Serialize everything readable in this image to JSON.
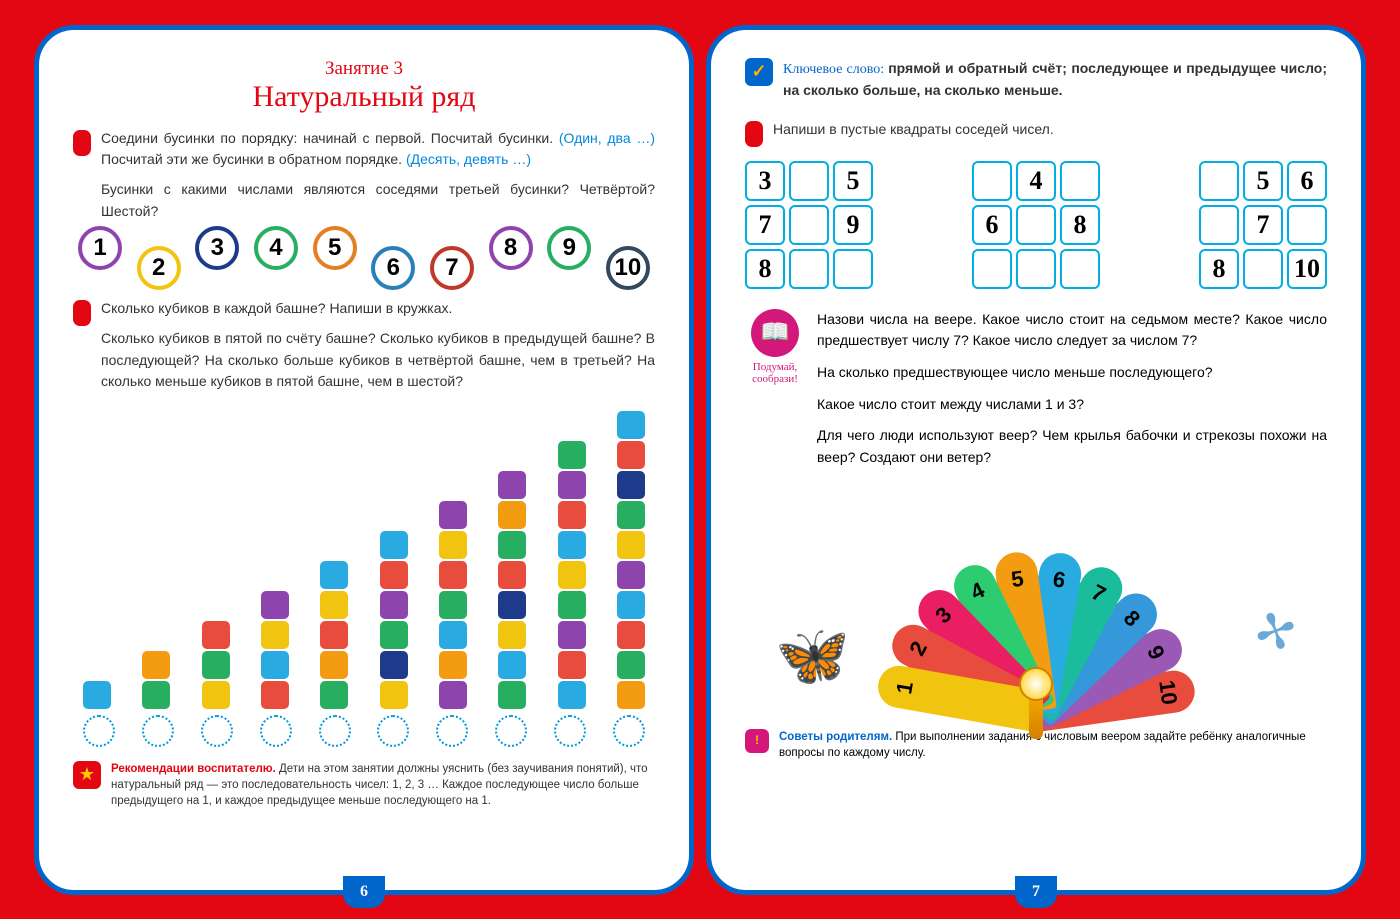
{
  "colors": {
    "bg": "#e30613",
    "border": "#0066cc",
    "red": "#e30613",
    "blue_hint": "#0088e0",
    "cell_border": "#00aee0",
    "magenta": "#d4177a"
  },
  "left": {
    "lesson_label": "Занятие 3",
    "title": "Натуральный ряд",
    "task1_a": "Соедини бусинки по порядку: начинай с первой. Посчитай бусинки. ",
    "task1_b": "(Один, два …) ",
    "task1_c": "Посчитай эти же бусинки в обратном порядке. ",
    "task1_d": "(Десять, девять …)",
    "task1_q": "Бусинки с какими числами являются соседями третьей бусинки? Четвёртой? Шестой?",
    "beads": [
      {
        "n": "1",
        "c": "#8e44ad",
        "pos": "up"
      },
      {
        "n": "2",
        "c": "#f1c40f",
        "pos": "down"
      },
      {
        "n": "3",
        "c": "#1e3a8a",
        "pos": "up"
      },
      {
        "n": "4",
        "c": "#27ae60",
        "pos": "up"
      },
      {
        "n": "5",
        "c": "#e67e22",
        "pos": "up"
      },
      {
        "n": "6",
        "c": "#2980b9",
        "pos": "down"
      },
      {
        "n": "7",
        "c": "#c0392b",
        "pos": "down"
      },
      {
        "n": "8",
        "c": "#8e44ad",
        "pos": "up"
      },
      {
        "n": "9",
        "c": "#27ae60",
        "pos": "up"
      },
      {
        "n": "10",
        "c": "#34495e",
        "pos": "down"
      }
    ],
    "task2_a": "Сколько кубиков в каждой башне? Напиши в кружках.",
    "task2_b": "Сколько кубиков в пятой по счёту башне? Сколько кубиков в предыдущей башне? В последующей? На сколько больше кубиков в четвёртой башне, чем в третьей? На сколько меньше кубиков в пятой башне, чем в шестой?",
    "cube_palette": [
      "#29abe2",
      "#27ae60",
      "#f39c12",
      "#f1c40f",
      "#e74c3c",
      "#8e44ad",
      "#1e3a8a"
    ],
    "towers": [
      [
        "#29abe2"
      ],
      [
        "#27ae60",
        "#f39c12"
      ],
      [
        "#f1c40f",
        "#27ae60",
        "#e74c3c"
      ],
      [
        "#e74c3c",
        "#29abe2",
        "#f1c40f",
        "#8e44ad"
      ],
      [
        "#27ae60",
        "#f39c12",
        "#e74c3c",
        "#f1c40f",
        "#29abe2"
      ],
      [
        "#f1c40f",
        "#1e3a8a",
        "#27ae60",
        "#8e44ad",
        "#e74c3c",
        "#29abe2"
      ],
      [
        "#8e44ad",
        "#f39c12",
        "#29abe2",
        "#27ae60",
        "#e74c3c",
        "#f1c40f",
        "#8e44ad"
      ],
      [
        "#27ae60",
        "#29abe2",
        "#f1c40f",
        "#1e3a8a",
        "#e74c3c",
        "#27ae60",
        "#f39c12",
        "#8e44ad"
      ],
      [
        "#29abe2",
        "#e74c3c",
        "#8e44ad",
        "#27ae60",
        "#f1c40f",
        "#29abe2",
        "#e74c3c",
        "#8e44ad",
        "#27ae60"
      ],
      [
        "#f39c12",
        "#27ae60",
        "#e74c3c",
        "#29abe2",
        "#8e44ad",
        "#f1c40f",
        "#27ae60",
        "#1e3a8a",
        "#e74c3c",
        "#29abe2"
      ]
    ],
    "reco_title": "Рекомендации воспитателю. ",
    "reco_text": "Дети на этом занятии должны уяснить (без заучивания понятий), что натуральный ряд — это последовательность чисел: 1, 2, 3 … Каждое последующее число больше предыдущего на 1, и каждое предыдущее меньше последующего на 1.",
    "page_num": "6"
  },
  "right": {
    "key_label": "Ключевое слово: ",
    "key_text": "прямой и обратный счёт; последующее и предыдущее число; на сколько больше, на сколько меньше.",
    "task1": "Напиши в пустые квадраты соседей чисел.",
    "grids": [
      [
        "3",
        "",
        "5",
        "7",
        "",
        "9",
        "8",
        "",
        ""
      ],
      [
        "",
        "4",
        "",
        "6",
        "",
        "8",
        "",
        "",
        ""
      ],
      [
        "",
        "5",
        "6",
        "",
        "7",
        "",
        "8",
        "",
        "10"
      ]
    ],
    "think_label": "Подумай, сообрази!",
    "think_p1": "Назови числа на веере. Какое число стоит на седьмом месте? Какое число предшествует числу 7? Какое число следует за числом 7?",
    "think_p2": "На сколько предшествующее число меньше последующего?",
    "think_p3": "Какое число стоит между числами 1 и 3?",
    "think_p4": "Для чего люди используют веер? Чем крылья бабочки и стрекозы похожи на веер? Создают они ветер?",
    "fan_blades": [
      {
        "n": "1",
        "c": "#f1c40f",
        "ang": -80
      },
      {
        "n": "2",
        "c": "#e74c3c",
        "ang": -62
      },
      {
        "n": "3",
        "c": "#e91e63",
        "ang": -44
      },
      {
        "n": "4",
        "c": "#2ecc71",
        "ang": -26
      },
      {
        "n": "5",
        "c": "#f39c12",
        "ang": -8
      },
      {
        "n": "6",
        "c": "#29abe2",
        "ang": 10
      },
      {
        "n": "7",
        "c": "#1abc9c",
        "ang": 28
      },
      {
        "n": "8",
        "c": "#3498db",
        "ang": 46
      },
      {
        "n": "9",
        "c": "#9b59b6",
        "ang": 64
      },
      {
        "n": "10",
        "c": "#e74c3c",
        "ang": 82
      }
    ],
    "advice_title": "Советы родителям. ",
    "advice_text": "При выполнении задания с числовым веером задайте ребёнку аналогичные вопросы по каждому числу.",
    "page_num": "7"
  }
}
